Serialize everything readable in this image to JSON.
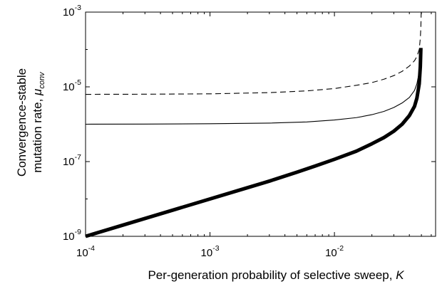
{
  "chart_data": {
    "type": "line",
    "title": "",
    "xlabel": {
      "text": "Per-generation probability of selective sweep, ",
      "symbol": "K"
    },
    "ylabel": {
      "line1": "Convergence-stable",
      "line2_text": "mutation rate, ",
      "symbol": "μ",
      "subscript": "conv"
    },
    "x_scale": "log",
    "y_scale": "log",
    "xlim": [
      0.0001,
      0.065
    ],
    "ylim": [
      1e-09,
      0.001
    ],
    "grid": false,
    "legend": "none",
    "x_ticks": [
      {
        "value": 0.0001,
        "base": "10",
        "exp": "-4"
      },
      {
        "value": 0.001,
        "base": "10",
        "exp": "-3"
      },
      {
        "value": 0.01,
        "base": "10",
        "exp": "-2"
      }
    ],
    "y_ticks": [
      {
        "value": 1e-09,
        "base": "10",
        "exp": "-9"
      },
      {
        "value": 1e-07,
        "base": "10",
        "exp": "-7"
      },
      {
        "value": 1e-05,
        "base": "10",
        "exp": "-5"
      },
      {
        "value": 0.001,
        "base": "10",
        "exp": "-3"
      }
    ],
    "series": [
      {
        "style": "dashed-thin",
        "color": "#000000",
        "points": [
          [
            0.0001,
            6.3e-06
          ],
          [
            0.0003,
            6.35e-06
          ],
          [
            0.001,
            6.5e-06
          ],
          [
            0.003,
            7e-06
          ],
          [
            0.006,
            7.8e-06
          ],
          [
            0.01,
            9e-06
          ],
          [
            0.015,
            1.1e-05
          ],
          [
            0.02,
            1.3e-05
          ],
          [
            0.025,
            1.6e-05
          ],
          [
            0.03,
            2e-05
          ],
          [
            0.035,
            2.6e-05
          ],
          [
            0.04,
            3.6e-05
          ],
          [
            0.044,
            5e-05
          ],
          [
            0.046,
            6.5e-05
          ],
          [
            0.048,
            0.0001
          ],
          [
            0.049,
            0.0002
          ],
          [
            0.0495,
            0.0004
          ],
          [
            0.0498,
            0.001
          ]
        ]
      },
      {
        "style": "solid-thin",
        "color": "#000000",
        "points": [
          [
            0.0001,
            1e-06
          ],
          [
            0.0003,
            1.01e-06
          ],
          [
            0.001,
            1.03e-06
          ],
          [
            0.003,
            1.07e-06
          ],
          [
            0.006,
            1.15e-06
          ],
          [
            0.01,
            1.3e-06
          ],
          [
            0.015,
            1.5e-06
          ],
          [
            0.02,
            1.8e-06
          ],
          [
            0.025,
            2.2e-06
          ],
          [
            0.03,
            2.8e-06
          ],
          [
            0.035,
            3.7e-06
          ],
          [
            0.04,
            5.2e-06
          ],
          [
            0.044,
            8e-06
          ],
          [
            0.046,
            1.2e-05
          ],
          [
            0.048,
            2.5e-05
          ],
          [
            0.049,
            5.5e-05
          ],
          [
            0.0495,
            0.0001
          ]
        ]
      },
      {
        "style": "solid-thick",
        "color": "#000000",
        "points": [
          [
            0.0001,
            1e-09
          ],
          [
            0.0002,
            2e-09
          ],
          [
            0.0003,
            3e-09
          ],
          [
            0.0005,
            5e-09
          ],
          [
            0.001,
            1e-08
          ],
          [
            0.002,
            2e-08
          ],
          [
            0.003,
            3e-08
          ],
          [
            0.005,
            5.2e-08
          ],
          [
            0.007,
            7.6e-08
          ],
          [
            0.01,
            1.15e-07
          ],
          [
            0.015,
            1.9e-07
          ],
          [
            0.02,
            3e-07
          ],
          [
            0.025,
            4.4e-07
          ],
          [
            0.03,
            6.5e-07
          ],
          [
            0.035,
            1e-06
          ],
          [
            0.04,
            1.7e-06
          ],
          [
            0.044,
            3e-06
          ],
          [
            0.046,
            5e-06
          ],
          [
            0.048,
            1.2e-05
          ],
          [
            0.049,
            3.5e-05
          ],
          [
            0.0495,
            0.00011
          ]
        ]
      }
    ]
  }
}
